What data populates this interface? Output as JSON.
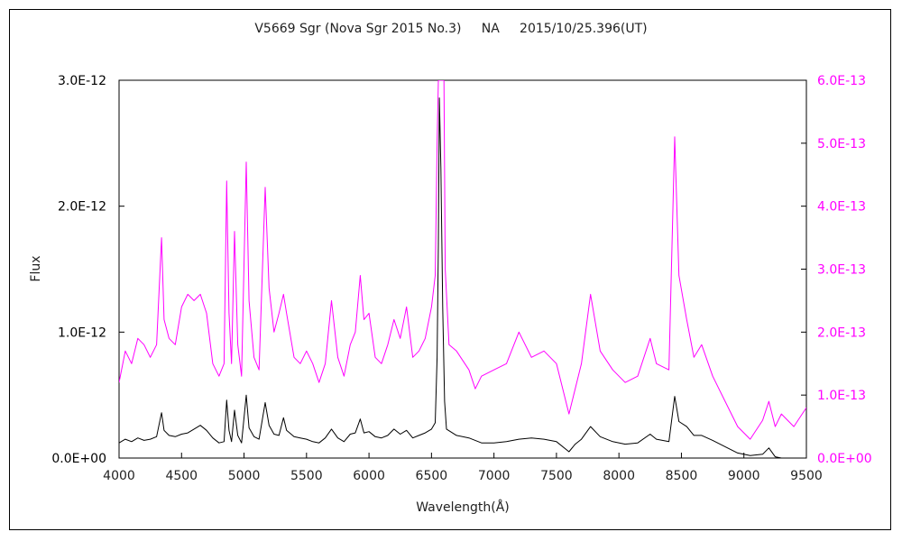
{
  "chart_data": {
    "type": "line",
    "title": "V5669 Sgr (Nova Sgr 2015 No.3)     NA     2015/10/25.396(UT)",
    "xlabel": "Wavelength(Å)",
    "ylabel": "Flux",
    "xlim": [
      4000,
      9500
    ],
    "ylim_left": [
      0,
      3e-12
    ],
    "ylim_right": [
      0,
      6e-13
    ],
    "x_ticks": [
      4000,
      4500,
      5000,
      5500,
      6000,
      6500,
      7000,
      7500,
      8000,
      8500,
      9000,
      9500
    ],
    "y_left_tick_values": [
      0,
      1e-12,
      2e-12,
      3e-12
    ],
    "y_left_ticks": [
      "0.0E+00",
      "1.0E-12",
      "2.0E-12",
      "3.0E-12"
    ],
    "y_right_tick_values": [
      0,
      1e-13,
      2e-13,
      3e-13,
      4e-13,
      5e-13,
      6e-13
    ],
    "y_right_ticks": [
      "0.0E+00",
      "1.0E-13",
      "2.0E-13",
      "3.0E-13",
      "4.0E-13",
      "5.0E-13",
      "6.0E-13"
    ],
    "grid": false,
    "series": [
      {
        "axis": "left",
        "color": "#000000",
        "points": [
          [
            4000,
            1.2e-13
          ],
          [
            4050,
            1.5e-13
          ],
          [
            4100,
            1.3e-13
          ],
          [
            4150,
            1.6e-13
          ],
          [
            4200,
            1.4e-13
          ],
          [
            4250,
            1.5e-13
          ],
          [
            4300,
            1.7e-13
          ],
          [
            4340,
            3.6e-13
          ],
          [
            4360,
            2.2e-13
          ],
          [
            4400,
            1.8e-13
          ],
          [
            4450,
            1.7e-13
          ],
          [
            4500,
            1.9e-13
          ],
          [
            4550,
            2e-13
          ],
          [
            4600,
            2.3e-13
          ],
          [
            4650,
            2.6e-13
          ],
          [
            4700,
            2.2e-13
          ],
          [
            4750,
            1.6e-13
          ],
          [
            4800,
            1.2e-13
          ],
          [
            4840,
            1.3e-13
          ],
          [
            4861,
            4.6e-13
          ],
          [
            4880,
            2.2e-13
          ],
          [
            4900,
            1.3e-13
          ],
          [
            4924,
            3.8e-13
          ],
          [
            4950,
            1.8e-13
          ],
          [
            4980,
            1.2e-13
          ],
          [
            5018,
            5e-13
          ],
          [
            5040,
            2.4e-13
          ],
          [
            5080,
            1.7e-13
          ],
          [
            5120,
            1.5e-13
          ],
          [
            5169,
            4.4e-13
          ],
          [
            5200,
            2.6e-13
          ],
          [
            5240,
            1.9e-13
          ],
          [
            5280,
            1.8e-13
          ],
          [
            5316,
            3.2e-13
          ],
          [
            5340,
            2.2e-13
          ],
          [
            5400,
            1.7e-13
          ],
          [
            5450,
            1.6e-13
          ],
          [
            5500,
            1.5e-13
          ],
          [
            5550,
            1.3e-13
          ],
          [
            5600,
            1.2e-13
          ],
          [
            5650,
            1.6e-13
          ],
          [
            5700,
            2.3e-13
          ],
          [
            5750,
            1.6e-13
          ],
          [
            5800,
            1.3e-13
          ],
          [
            5850,
            1.9e-13
          ],
          [
            5890,
            2e-13
          ],
          [
            5930,
            3.1e-13
          ],
          [
            5960,
            2e-13
          ],
          [
            6000,
            2.1e-13
          ],
          [
            6050,
            1.7e-13
          ],
          [
            6100,
            1.6e-13
          ],
          [
            6150,
            1.8e-13
          ],
          [
            6200,
            2.3e-13
          ],
          [
            6250,
            1.9e-13
          ],
          [
            6300,
            2.2e-13
          ],
          [
            6350,
            1.6e-13
          ],
          [
            6400,
            1.8e-13
          ],
          [
            6450,
            2e-13
          ],
          [
            6500,
            2.3e-13
          ],
          [
            6530,
            2.8e-13
          ],
          [
            6545,
            8e-13
          ],
          [
            6555,
            1.7e-12
          ],
          [
            6563,
            2.86e-12
          ],
          [
            6575,
            2.3e-12
          ],
          [
            6590,
            1.2e-12
          ],
          [
            6605,
            4.5e-13
          ],
          [
            6620,
            2.3e-13
          ],
          [
            6700,
            1.8e-13
          ],
          [
            6800,
            1.6e-13
          ],
          [
            6900,
            1.2e-13
          ],
          [
            7000,
            1.2e-13
          ],
          [
            7100,
            1.3e-13
          ],
          [
            7200,
            1.5e-13
          ],
          [
            7300,
            1.6e-13
          ],
          [
            7400,
            1.5e-13
          ],
          [
            7500,
            1.3e-13
          ],
          [
            7600,
            5e-14
          ],
          [
            7650,
            1.1e-13
          ],
          [
            7700,
            1.5e-13
          ],
          [
            7773,
            2.5e-13
          ],
          [
            7850,
            1.7e-13
          ],
          [
            7950,
            1.3e-13
          ],
          [
            8050,
            1.1e-13
          ],
          [
            8150,
            1.2e-13
          ],
          [
            8250,
            1.9e-13
          ],
          [
            8300,
            1.5e-13
          ],
          [
            8400,
            1.3e-13
          ],
          [
            8446,
            4.9e-13
          ],
          [
            8480,
            2.9e-13
          ],
          [
            8542,
            2.5e-13
          ],
          [
            8600,
            1.8e-13
          ],
          [
            8662,
            1.8e-13
          ],
          [
            8750,
            1.4e-13
          ],
          [
            8850,
            9e-14
          ],
          [
            8950,
            4e-14
          ],
          [
            9050,
            2e-14
          ],
          [
            9150,
            3e-14
          ],
          [
            9200,
            8e-14
          ],
          [
            9250,
            1e-14
          ],
          [
            9300,
            0.0
          ]
        ]
      },
      {
        "axis": "right",
        "color": "#ff00ff",
        "points": [
          [
            4000,
            1.2e-13
          ],
          [
            4050,
            1.7e-13
          ],
          [
            4100,
            1.5e-13
          ],
          [
            4150,
            1.9e-13
          ],
          [
            4200,
            1.8e-13
          ],
          [
            4250,
            1.6e-13
          ],
          [
            4300,
            1.8e-13
          ],
          [
            4340,
            3.5e-13
          ],
          [
            4360,
            2.2e-13
          ],
          [
            4400,
            1.9e-13
          ],
          [
            4450,
            1.8e-13
          ],
          [
            4500,
            2.4e-13
          ],
          [
            4550,
            2.6e-13
          ],
          [
            4600,
            2.5e-13
          ],
          [
            4650,
            2.6e-13
          ],
          [
            4700,
            2.3e-13
          ],
          [
            4750,
            1.5e-13
          ],
          [
            4800,
            1.3e-13
          ],
          [
            4840,
            1.5e-13
          ],
          [
            4861,
            4.4e-13
          ],
          [
            4880,
            2.3e-13
          ],
          [
            4900,
            1.5e-13
          ],
          [
            4924,
            3.6e-13
          ],
          [
            4950,
            1.8e-13
          ],
          [
            4980,
            1.3e-13
          ],
          [
            5018,
            4.7e-13
          ],
          [
            5040,
            2.5e-13
          ],
          [
            5080,
            1.6e-13
          ],
          [
            5120,
            1.4e-13
          ],
          [
            5169,
            4.3e-13
          ],
          [
            5200,
            2.7e-13
          ],
          [
            5240,
            2e-13
          ],
          [
            5280,
            2.3e-13
          ],
          [
            5316,
            2.6e-13
          ],
          [
            5340,
            2.3e-13
          ],
          [
            5400,
            1.6e-13
          ],
          [
            5450,
            1.5e-13
          ],
          [
            5500,
            1.7e-13
          ],
          [
            5550,
            1.5e-13
          ],
          [
            5600,
            1.2e-13
          ],
          [
            5650,
            1.5e-13
          ],
          [
            5700,
            2.5e-13
          ],
          [
            5750,
            1.6e-13
          ],
          [
            5800,
            1.3e-13
          ],
          [
            5850,
            1.8e-13
          ],
          [
            5890,
            2e-13
          ],
          [
            5930,
            2.9e-13
          ],
          [
            5960,
            2.2e-13
          ],
          [
            6000,
            2.3e-13
          ],
          [
            6050,
            1.6e-13
          ],
          [
            6100,
            1.5e-13
          ],
          [
            6150,
            1.8e-13
          ],
          [
            6200,
            2.2e-13
          ],
          [
            6250,
            1.9e-13
          ],
          [
            6300,
            2.4e-13
          ],
          [
            6350,
            1.6e-13
          ],
          [
            6400,
            1.7e-13
          ],
          [
            6450,
            1.9e-13
          ],
          [
            6500,
            2.4e-13
          ],
          [
            6530,
            2.9e-13
          ],
          [
            6545,
            5e-13
          ],
          [
            6555,
            6e-13
          ],
          [
            6600,
            6e-13
          ],
          [
            6610,
            3e-13
          ],
          [
            6640,
            1.8e-13
          ],
          [
            6700,
            1.7e-13
          ],
          [
            6800,
            1.4e-13
          ],
          [
            6850,
            1.1e-13
          ],
          [
            6900,
            1.3e-13
          ],
          [
            7000,
            1.4e-13
          ],
          [
            7100,
            1.5e-13
          ],
          [
            7200,
            2e-13
          ],
          [
            7300,
            1.6e-13
          ],
          [
            7400,
            1.7e-13
          ],
          [
            7500,
            1.5e-13
          ],
          [
            7600,
            7e-14
          ],
          [
            7650,
            1.1e-13
          ],
          [
            7700,
            1.5e-13
          ],
          [
            7773,
            2.6e-13
          ],
          [
            7850,
            1.7e-13
          ],
          [
            7950,
            1.4e-13
          ],
          [
            8050,
            1.2e-13
          ],
          [
            8150,
            1.3e-13
          ],
          [
            8250,
            1.9e-13
          ],
          [
            8300,
            1.5e-13
          ],
          [
            8400,
            1.4e-13
          ],
          [
            8446,
            5.1e-13
          ],
          [
            8480,
            2.9e-13
          ],
          [
            8542,
            2.2e-13
          ],
          [
            8600,
            1.6e-13
          ],
          [
            8662,
            1.8e-13
          ],
          [
            8750,
            1.3e-13
          ],
          [
            8850,
            9e-14
          ],
          [
            8950,
            5e-14
          ],
          [
            9050,
            3e-14
          ],
          [
            9150,
            6e-14
          ],
          [
            9200,
            9e-14
          ],
          [
            9250,
            5e-14
          ],
          [
            9300,
            7e-14
          ],
          [
            9400,
            5e-14
          ],
          [
            9500,
            8e-14
          ]
        ]
      }
    ]
  },
  "colors": {
    "left_axis": "#000000",
    "right_axis": "#ff00ff"
  }
}
